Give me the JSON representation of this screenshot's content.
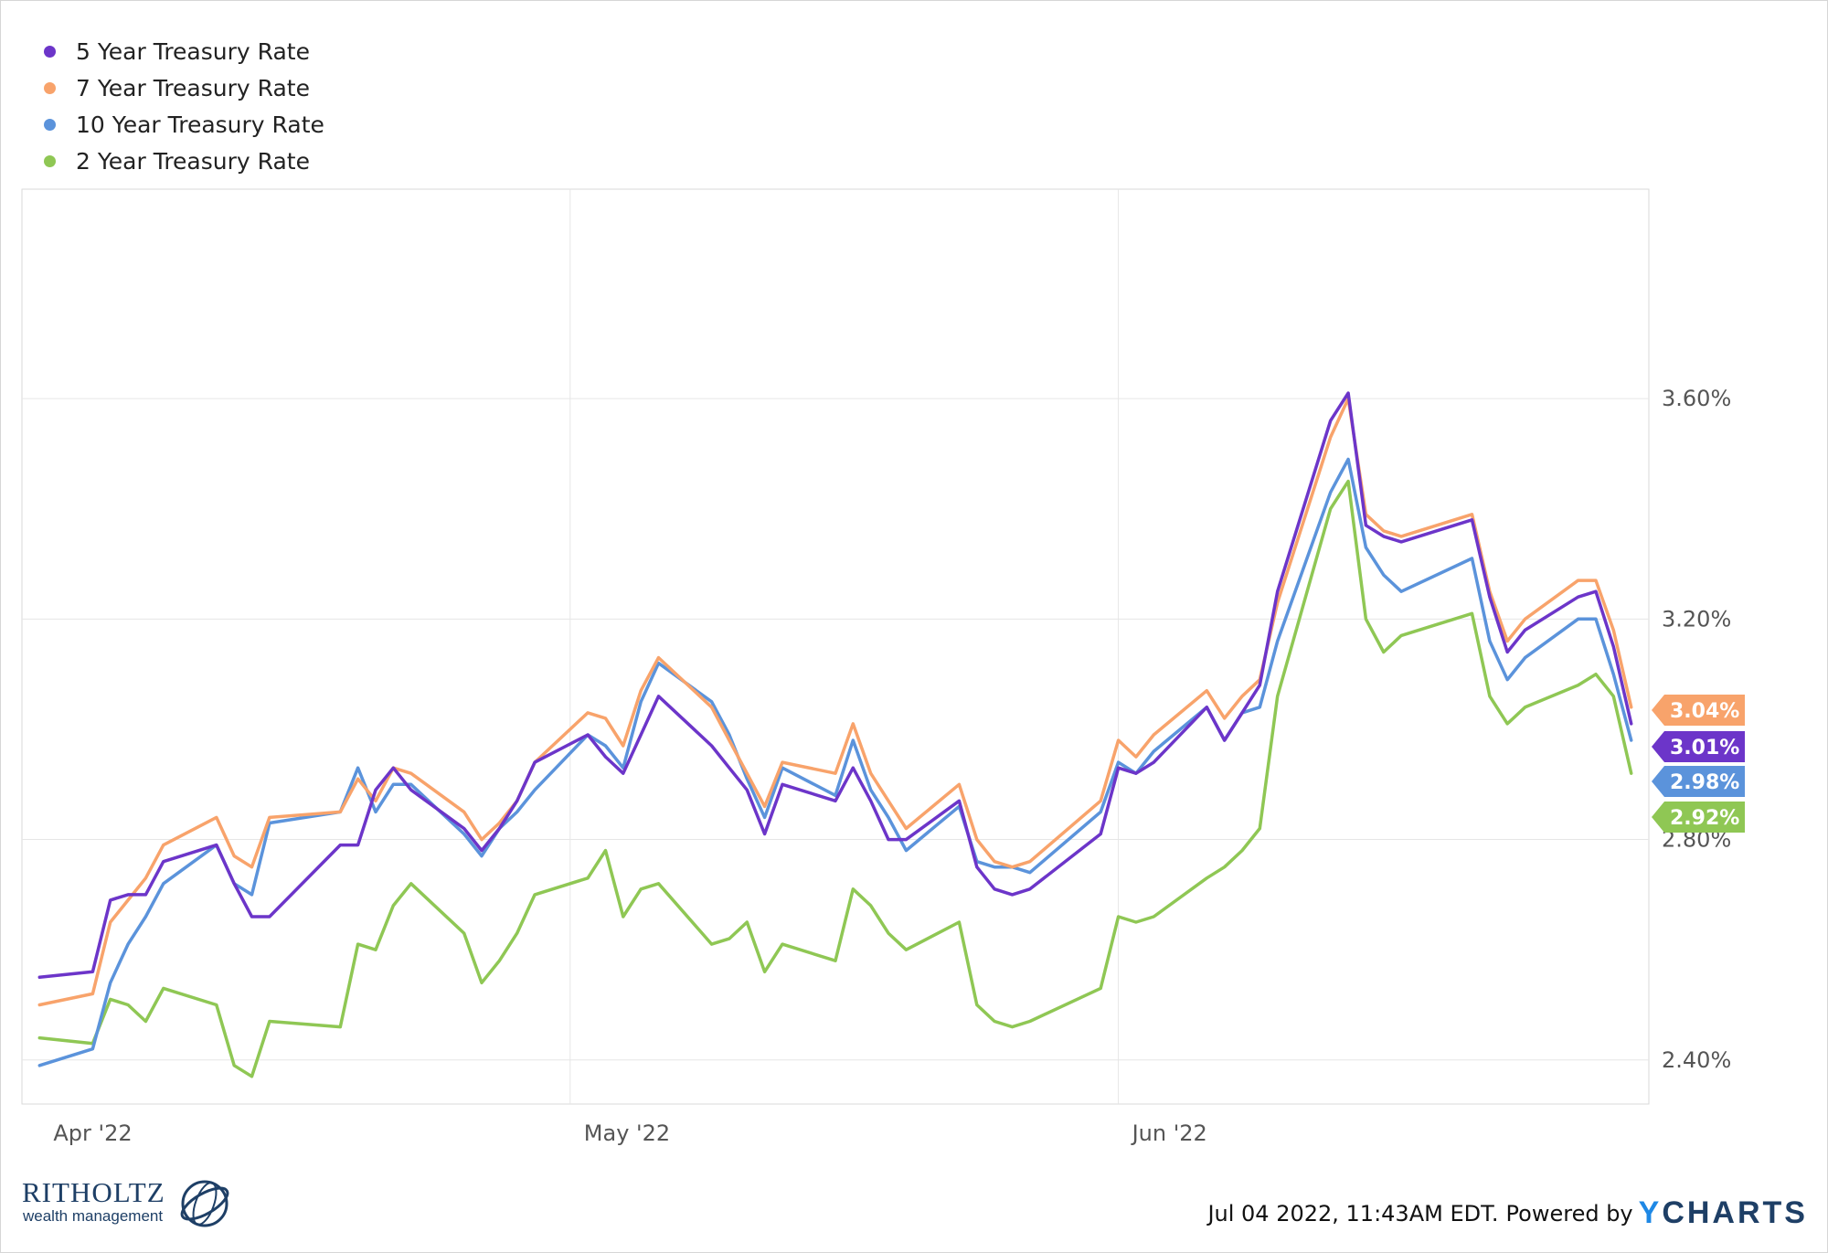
{
  "chart_data": {
    "type": "line",
    "x_ticks": [
      "Apr '22",
      "May '22",
      "Jun '22"
    ],
    "y_ticks": [
      "3.60%",
      "3.20%",
      "2.80%",
      "2.40%"
    ],
    "ylim": [
      2.32,
      3.98
    ],
    "grid": true,
    "legend_position": "top-left",
    "series": [
      {
        "name": "5 Year Treasury Rate",
        "color": "#6c35c9",
        "end_label": "3.01%",
        "points": [
          [
            "2022-04-01",
            2.55
          ],
          [
            "2022-04-04",
            2.56
          ],
          [
            "2022-04-05",
            2.69
          ],
          [
            "2022-04-06",
            2.7
          ],
          [
            "2022-04-07",
            2.7
          ],
          [
            "2022-04-08",
            2.76
          ],
          [
            "2022-04-11",
            2.79
          ],
          [
            "2022-04-12",
            2.72
          ],
          [
            "2022-04-13",
            2.66
          ],
          [
            "2022-04-14",
            2.66
          ],
          [
            "2022-04-18",
            2.79
          ],
          [
            "2022-04-19",
            2.79
          ],
          [
            "2022-04-20",
            2.89
          ],
          [
            "2022-04-21",
            2.93
          ],
          [
            "2022-04-22",
            2.89
          ],
          [
            "2022-04-25",
            2.82
          ],
          [
            "2022-04-26",
            2.78
          ],
          [
            "2022-04-27",
            2.82
          ],
          [
            "2022-04-28",
            2.87
          ],
          [
            "2022-04-29",
            2.94
          ],
          [
            "2022-05-02",
            2.99
          ],
          [
            "2022-05-03",
            2.95
          ],
          [
            "2022-05-04",
            2.92
          ],
          [
            "2022-05-05",
            2.99
          ],
          [
            "2022-05-06",
            3.06
          ],
          [
            "2022-05-09",
            2.97
          ],
          [
            "2022-05-10",
            2.93
          ],
          [
            "2022-05-11",
            2.89
          ],
          [
            "2022-05-12",
            2.81
          ],
          [
            "2022-05-13",
            2.9
          ],
          [
            "2022-05-16",
            2.87
          ],
          [
            "2022-05-17",
            2.93
          ],
          [
            "2022-05-18",
            2.87
          ],
          [
            "2022-05-19",
            2.8
          ],
          [
            "2022-05-20",
            2.8
          ],
          [
            "2022-05-23",
            2.87
          ],
          [
            "2022-05-24",
            2.75
          ],
          [
            "2022-05-25",
            2.71
          ],
          [
            "2022-05-26",
            2.7
          ],
          [
            "2022-05-27",
            2.71
          ],
          [
            "2022-05-31",
            2.81
          ],
          [
            "2022-06-01",
            2.93
          ],
          [
            "2022-06-02",
            2.92
          ],
          [
            "2022-06-03",
            2.94
          ],
          [
            "2022-06-06",
            3.04
          ],
          [
            "2022-06-07",
            2.98
          ],
          [
            "2022-06-08",
            3.03
          ],
          [
            "2022-06-09",
            3.08
          ],
          [
            "2022-06-10",
            3.25
          ],
          [
            "2022-06-13",
            3.56
          ],
          [
            "2022-06-14",
            3.61
          ],
          [
            "2022-06-15",
            3.37
          ],
          [
            "2022-06-16",
            3.35
          ],
          [
            "2022-06-17",
            3.34
          ],
          [
            "2022-06-21",
            3.38
          ],
          [
            "2022-06-22",
            3.24
          ],
          [
            "2022-06-23",
            3.14
          ],
          [
            "2022-06-24",
            3.18
          ],
          [
            "2022-06-27",
            3.24
          ],
          [
            "2022-06-28",
            3.25
          ],
          [
            "2022-06-29",
            3.15
          ],
          [
            "2022-06-30",
            3.01
          ]
        ]
      },
      {
        "name": "7 Year Treasury Rate",
        "color": "#f8a36b",
        "end_label": "3.04%",
        "points": [
          [
            "2022-04-01",
            2.5
          ],
          [
            "2022-04-04",
            2.52
          ],
          [
            "2022-04-05",
            2.65
          ],
          [
            "2022-04-06",
            2.69
          ],
          [
            "2022-04-07",
            2.73
          ],
          [
            "2022-04-08",
            2.79
          ],
          [
            "2022-04-11",
            2.84
          ],
          [
            "2022-04-12",
            2.77
          ],
          [
            "2022-04-13",
            2.75
          ],
          [
            "2022-04-14",
            2.84
          ],
          [
            "2022-04-18",
            2.85
          ],
          [
            "2022-04-19",
            2.91
          ],
          [
            "2022-04-20",
            2.87
          ],
          [
            "2022-04-21",
            2.93
          ],
          [
            "2022-04-22",
            2.92
          ],
          [
            "2022-04-25",
            2.85
          ],
          [
            "2022-04-26",
            2.8
          ],
          [
            "2022-04-27",
            2.83
          ],
          [
            "2022-04-28",
            2.87
          ],
          [
            "2022-04-29",
            2.94
          ],
          [
            "2022-05-02",
            3.03
          ],
          [
            "2022-05-03",
            3.02
          ],
          [
            "2022-05-04",
            2.97
          ],
          [
            "2022-05-05",
            3.07
          ],
          [
            "2022-05-06",
            3.13
          ],
          [
            "2022-05-09",
            3.04
          ],
          [
            "2022-05-10",
            2.98
          ],
          [
            "2022-05-11",
            2.92
          ],
          [
            "2022-05-12",
            2.86
          ],
          [
            "2022-05-13",
            2.94
          ],
          [
            "2022-05-16",
            2.92
          ],
          [
            "2022-05-17",
            3.01
          ],
          [
            "2022-05-18",
            2.92
          ],
          [
            "2022-05-19",
            2.87
          ],
          [
            "2022-05-20",
            2.82
          ],
          [
            "2022-05-23",
            2.9
          ],
          [
            "2022-05-24",
            2.8
          ],
          [
            "2022-05-25",
            2.76
          ],
          [
            "2022-05-26",
            2.75
          ],
          [
            "2022-05-27",
            2.76
          ],
          [
            "2022-05-31",
            2.87
          ],
          [
            "2022-06-01",
            2.98
          ],
          [
            "2022-06-02",
            2.95
          ],
          [
            "2022-06-03",
            2.99
          ],
          [
            "2022-06-06",
            3.07
          ],
          [
            "2022-06-07",
            3.02
          ],
          [
            "2022-06-08",
            3.06
          ],
          [
            "2022-06-09",
            3.09
          ],
          [
            "2022-06-10",
            3.23
          ],
          [
            "2022-06-13",
            3.53
          ],
          [
            "2022-06-14",
            3.6
          ],
          [
            "2022-06-15",
            3.39
          ],
          [
            "2022-06-16",
            3.36
          ],
          [
            "2022-06-17",
            3.35
          ],
          [
            "2022-06-21",
            3.39
          ],
          [
            "2022-06-22",
            3.25
          ],
          [
            "2022-06-23",
            3.16
          ],
          [
            "2022-06-24",
            3.2
          ],
          [
            "2022-06-27",
            3.27
          ],
          [
            "2022-06-28",
            3.27
          ],
          [
            "2022-06-29",
            3.18
          ],
          [
            "2022-06-30",
            3.04
          ]
        ]
      },
      {
        "name": "10 Year Treasury Rate",
        "color": "#5b93db",
        "end_label": "2.98%",
        "points": [
          [
            "2022-04-01",
            2.39
          ],
          [
            "2022-04-04",
            2.42
          ],
          [
            "2022-04-05",
            2.54
          ],
          [
            "2022-04-06",
            2.61
          ],
          [
            "2022-04-07",
            2.66
          ],
          [
            "2022-04-08",
            2.72
          ],
          [
            "2022-04-11",
            2.79
          ],
          [
            "2022-04-12",
            2.72
          ],
          [
            "2022-04-13",
            2.7
          ],
          [
            "2022-04-14",
            2.83
          ],
          [
            "2022-04-18",
            2.85
          ],
          [
            "2022-04-19",
            2.93
          ],
          [
            "2022-04-20",
            2.85
          ],
          [
            "2022-04-21",
            2.9
          ],
          [
            "2022-04-22",
            2.9
          ],
          [
            "2022-04-25",
            2.81
          ],
          [
            "2022-04-26",
            2.77
          ],
          [
            "2022-04-27",
            2.82
          ],
          [
            "2022-04-28",
            2.85
          ],
          [
            "2022-04-29",
            2.89
          ],
          [
            "2022-05-02",
            2.99
          ],
          [
            "2022-05-03",
            2.97
          ],
          [
            "2022-05-04",
            2.93
          ],
          [
            "2022-05-05",
            3.05
          ],
          [
            "2022-05-06",
            3.12
          ],
          [
            "2022-05-09",
            3.05
          ],
          [
            "2022-05-10",
            2.99
          ],
          [
            "2022-05-11",
            2.91
          ],
          [
            "2022-05-12",
            2.84
          ],
          [
            "2022-05-13",
            2.93
          ],
          [
            "2022-05-16",
            2.88
          ],
          [
            "2022-05-17",
            2.98
          ],
          [
            "2022-05-18",
            2.89
          ],
          [
            "2022-05-19",
            2.84
          ],
          [
            "2022-05-20",
            2.78
          ],
          [
            "2022-05-23",
            2.86
          ],
          [
            "2022-05-24",
            2.76
          ],
          [
            "2022-05-25",
            2.75
          ],
          [
            "2022-05-26",
            2.75
          ],
          [
            "2022-05-27",
            2.74
          ],
          [
            "2022-05-31",
            2.85
          ],
          [
            "2022-06-01",
            2.94
          ],
          [
            "2022-06-02",
            2.92
          ],
          [
            "2022-06-03",
            2.96
          ],
          [
            "2022-06-06",
            3.04
          ],
          [
            "2022-06-07",
            2.98
          ],
          [
            "2022-06-08",
            3.03
          ],
          [
            "2022-06-09",
            3.04
          ],
          [
            "2022-06-10",
            3.16
          ],
          [
            "2022-06-13",
            3.43
          ],
          [
            "2022-06-14",
            3.49
          ],
          [
            "2022-06-15",
            3.33
          ],
          [
            "2022-06-16",
            3.28
          ],
          [
            "2022-06-17",
            3.25
          ],
          [
            "2022-06-21",
            3.31
          ],
          [
            "2022-06-22",
            3.16
          ],
          [
            "2022-06-23",
            3.09
          ],
          [
            "2022-06-24",
            3.13
          ],
          [
            "2022-06-27",
            3.2
          ],
          [
            "2022-06-28",
            3.2
          ],
          [
            "2022-06-29",
            3.1
          ],
          [
            "2022-06-30",
            2.98
          ]
        ]
      },
      {
        "name": "2 Year Treasury Rate",
        "color": "#8fc754",
        "end_label": "2.92%",
        "points": [
          [
            "2022-04-01",
            2.44
          ],
          [
            "2022-04-04",
            2.43
          ],
          [
            "2022-04-05",
            2.51
          ],
          [
            "2022-04-06",
            2.5
          ],
          [
            "2022-04-07",
            2.47
          ],
          [
            "2022-04-08",
            2.53
          ],
          [
            "2022-04-11",
            2.5
          ],
          [
            "2022-04-12",
            2.39
          ],
          [
            "2022-04-13",
            2.37
          ],
          [
            "2022-04-14",
            2.47
          ],
          [
            "2022-04-18",
            2.46
          ],
          [
            "2022-04-19",
            2.61
          ],
          [
            "2022-04-20",
            2.6
          ],
          [
            "2022-04-21",
            2.68
          ],
          [
            "2022-04-22",
            2.72
          ],
          [
            "2022-04-25",
            2.63
          ],
          [
            "2022-04-26",
            2.54
          ],
          [
            "2022-04-27",
            2.58
          ],
          [
            "2022-04-28",
            2.63
          ],
          [
            "2022-04-29",
            2.7
          ],
          [
            "2022-05-02",
            2.73
          ],
          [
            "2022-05-03",
            2.78
          ],
          [
            "2022-05-04",
            2.66
          ],
          [
            "2022-05-05",
            2.71
          ],
          [
            "2022-05-06",
            2.72
          ],
          [
            "2022-05-09",
            2.61
          ],
          [
            "2022-05-10",
            2.62
          ],
          [
            "2022-05-11",
            2.65
          ],
          [
            "2022-05-12",
            2.56
          ],
          [
            "2022-05-13",
            2.61
          ],
          [
            "2022-05-16",
            2.58
          ],
          [
            "2022-05-17",
            2.71
          ],
          [
            "2022-05-18",
            2.68
          ],
          [
            "2022-05-19",
            2.63
          ],
          [
            "2022-05-20",
            2.6
          ],
          [
            "2022-05-23",
            2.65
          ],
          [
            "2022-05-24",
            2.5
          ],
          [
            "2022-05-25",
            2.47
          ],
          [
            "2022-05-26",
            2.46
          ],
          [
            "2022-05-27",
            2.47
          ],
          [
            "2022-05-31",
            2.53
          ],
          [
            "2022-06-01",
            2.66
          ],
          [
            "2022-06-02",
            2.65
          ],
          [
            "2022-06-03",
            2.66
          ],
          [
            "2022-06-06",
            2.73
          ],
          [
            "2022-06-07",
            2.75
          ],
          [
            "2022-06-08",
            2.78
          ],
          [
            "2022-06-09",
            2.82
          ],
          [
            "2022-06-10",
            3.06
          ],
          [
            "2022-06-13",
            3.4
          ],
          [
            "2022-06-14",
            3.45
          ],
          [
            "2022-06-15",
            3.2
          ],
          [
            "2022-06-16",
            3.14
          ],
          [
            "2022-06-17",
            3.17
          ],
          [
            "2022-06-21",
            3.21
          ],
          [
            "2022-06-22",
            3.06
          ],
          [
            "2022-06-23",
            3.01
          ],
          [
            "2022-06-24",
            3.04
          ],
          [
            "2022-06-27",
            3.08
          ],
          [
            "2022-06-28",
            3.1
          ],
          [
            "2022-06-29",
            3.06
          ],
          [
            "2022-06-30",
            2.92
          ]
        ]
      }
    ]
  },
  "footer": {
    "timestamp": "Jul 04 2022, 11:43AM EDT.",
    "powered_by": "Powered by",
    "brand_prefix": "Y",
    "brand_rest": "CHARTS"
  },
  "logo": {
    "name": "RITHOLTZ",
    "subtitle": "wealth management"
  }
}
